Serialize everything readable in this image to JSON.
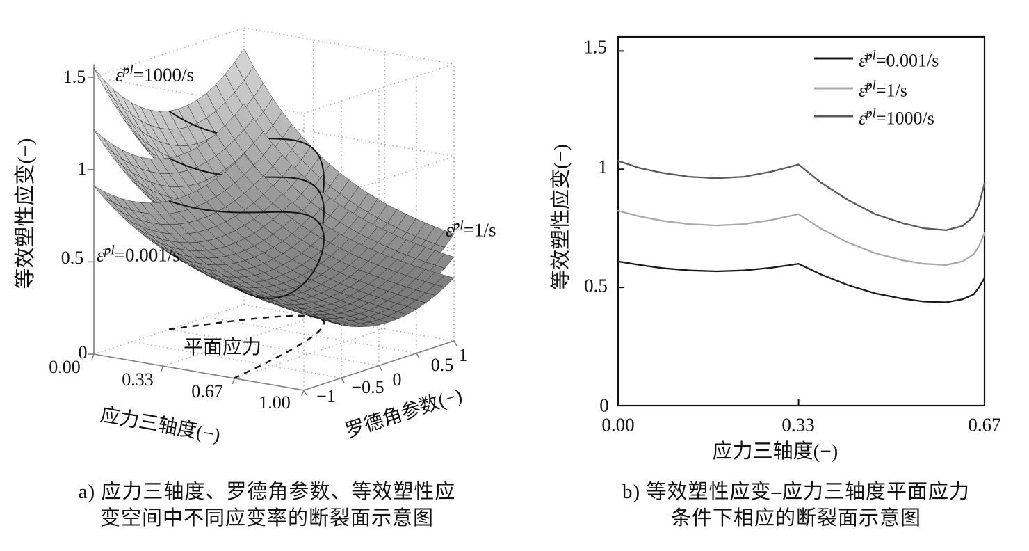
{
  "figure": {
    "panel_a": {
      "caption_line1": "a) 应力三轴度、罗德角参数、等效塑性应",
      "caption_line2": "变空间中不同应变率的断裂面示意图",
      "plane_stress_label": "平面应力",
      "annotations": [
        {
          "sym": "ε̄̇",
          "sup": "pl",
          "rest": "=1000/s"
        },
        {
          "sym": "ε̄̇",
          "sup": "pl",
          "rest": "=0.001/s"
        },
        {
          "sym": "ε̄̇",
          "sup": "pl",
          "rest": "=1/s"
        }
      ]
    },
    "panel_b": {
      "caption_line1": "b) 等效塑性应变–应力三轴度平面应力",
      "caption_line2": "条件下相应的断裂面示意图",
      "legend": [
        {
          "sym": "ε̄̇",
          "sup": "pl",
          "rest": "=0.001/s",
          "color": "#1a1a1a"
        },
        {
          "sym": "ε̄̇",
          "sup": "pl",
          "rest": "=1/s",
          "color": "#a9a9a9"
        },
        {
          "sym": "ε̄̇",
          "sup": "pl",
          "rest": "=1000/s",
          "color": "#5a5a5a"
        }
      ]
    }
  },
  "chart_data": [
    {
      "type": "surface",
      "title": "断裂面示意图 (3D fracture surfaces)",
      "x_axis": {
        "label": "应力三轴度(−)",
        "ticks": [
          "0.00",
          "0.33",
          "0.67",
          "1.00"
        ],
        "tick_values": [
          0,
          0.33,
          0.67,
          1.0
        ],
        "range": [
          0,
          1
        ]
      },
      "y_axis": {
        "label": "罗德角参数(−)",
        "ticks": [
          "−1",
          "−0.5",
          "0",
          "0.5",
          "1"
        ],
        "tick_values": [
          -1,
          -0.5,
          0,
          0.5,
          1
        ],
        "range": [
          -1,
          1
        ]
      },
      "z_axis": {
        "label": "等效塑性应变(−)",
        "ticks": [
          "0",
          "0.5",
          "1",
          "1.5"
        ],
        "tick_values": [
          0,
          0.5,
          1,
          1.5
        ],
        "range": [
          0,
          1.5
        ]
      },
      "grid": true,
      "surfaces": [
        {
          "name": "ε̄̇pl=1000/s",
          "scale": 1.02,
          "apex_strain": 1.55
        },
        {
          "name": "ε̄̇pl=1/s",
          "scale": 0.8,
          "apex_strain": 1.22
        },
        {
          "name": "ε̄̇pl=0.001/s",
          "scale": 0.6,
          "apex_strain": 0.91
        }
      ],
      "base_surface": {
        "formula": "strain = scale*(a + b*exp(-c*eta) + d*theta^2 - e*theta)",
        "a": 0.28,
        "b": 0.88,
        "c": 2.3,
        "d": 0.28,
        "e": 0.08
      },
      "plane_stress_curve": {
        "label": "平面应力",
        "formula": "theta = -13.5*eta*(eta^2 - 1/3)",
        "eta_range": [
          0,
          0.667
        ],
        "style": "dashed-on-floor"
      }
    },
    {
      "type": "line",
      "title": "平面应力条件断裂面",
      "xlabel": "应力三轴度(−)",
      "ylabel": "等效塑性应变(−)",
      "x_ticks": [
        "0.00",
        "0.33",
        "0.67"
      ],
      "x_tick_values": [
        0,
        0.33,
        0.67
      ],
      "y_ticks": [
        "0",
        "0.5",
        "1",
        "1.5"
      ],
      "y_tick_values": [
        0,
        0.5,
        1,
        1.5
      ],
      "xlim": [
        0,
        0.67
      ],
      "ylim": [
        0,
        1.56
      ],
      "grid": false,
      "legend_position": "top-right",
      "series": [
        {
          "name": "ε̄̇pl=0.001/s",
          "color": "#1a1a1a",
          "x": [
            0,
            0.04,
            0.08,
            0.13,
            0.18,
            0.23,
            0.28,
            0.33,
            0.37,
            0.42,
            0.47,
            0.52,
            0.56,
            0.6,
            0.63,
            0.65,
            0.66,
            0.67
          ],
          "y": [
            0.61,
            0.595,
            0.582,
            0.572,
            0.568,
            0.572,
            0.583,
            0.6,
            0.556,
            0.51,
            0.475,
            0.452,
            0.44,
            0.437,
            0.45,
            0.47,
            0.5,
            0.54
          ]
        },
        {
          "name": "ε̄̇pl=1/s",
          "color": "#a9a9a9",
          "x": [
            0,
            0.04,
            0.08,
            0.13,
            0.18,
            0.23,
            0.28,
            0.33,
            0.37,
            0.42,
            0.47,
            0.52,
            0.56,
            0.6,
            0.63,
            0.65,
            0.66,
            0.67
          ],
          "y": [
            0.824,
            0.8,
            0.782,
            0.768,
            0.762,
            0.768,
            0.785,
            0.81,
            0.75,
            0.69,
            0.645,
            0.615,
            0.6,
            0.595,
            0.61,
            0.64,
            0.675,
            0.73
          ]
        },
        {
          "name": "ε̄̇pl=1000/s",
          "color": "#5a5a5a",
          "x": [
            0,
            0.04,
            0.08,
            0.13,
            0.18,
            0.23,
            0.28,
            0.33,
            0.37,
            0.42,
            0.47,
            0.52,
            0.56,
            0.6,
            0.63,
            0.65,
            0.66,
            0.67
          ],
          "y": [
            1.035,
            1.005,
            0.985,
            0.968,
            0.962,
            0.968,
            0.99,
            1.02,
            0.945,
            0.87,
            0.81,
            0.772,
            0.75,
            0.742,
            0.76,
            0.8,
            0.85,
            0.94
          ]
        }
      ]
    }
  ]
}
